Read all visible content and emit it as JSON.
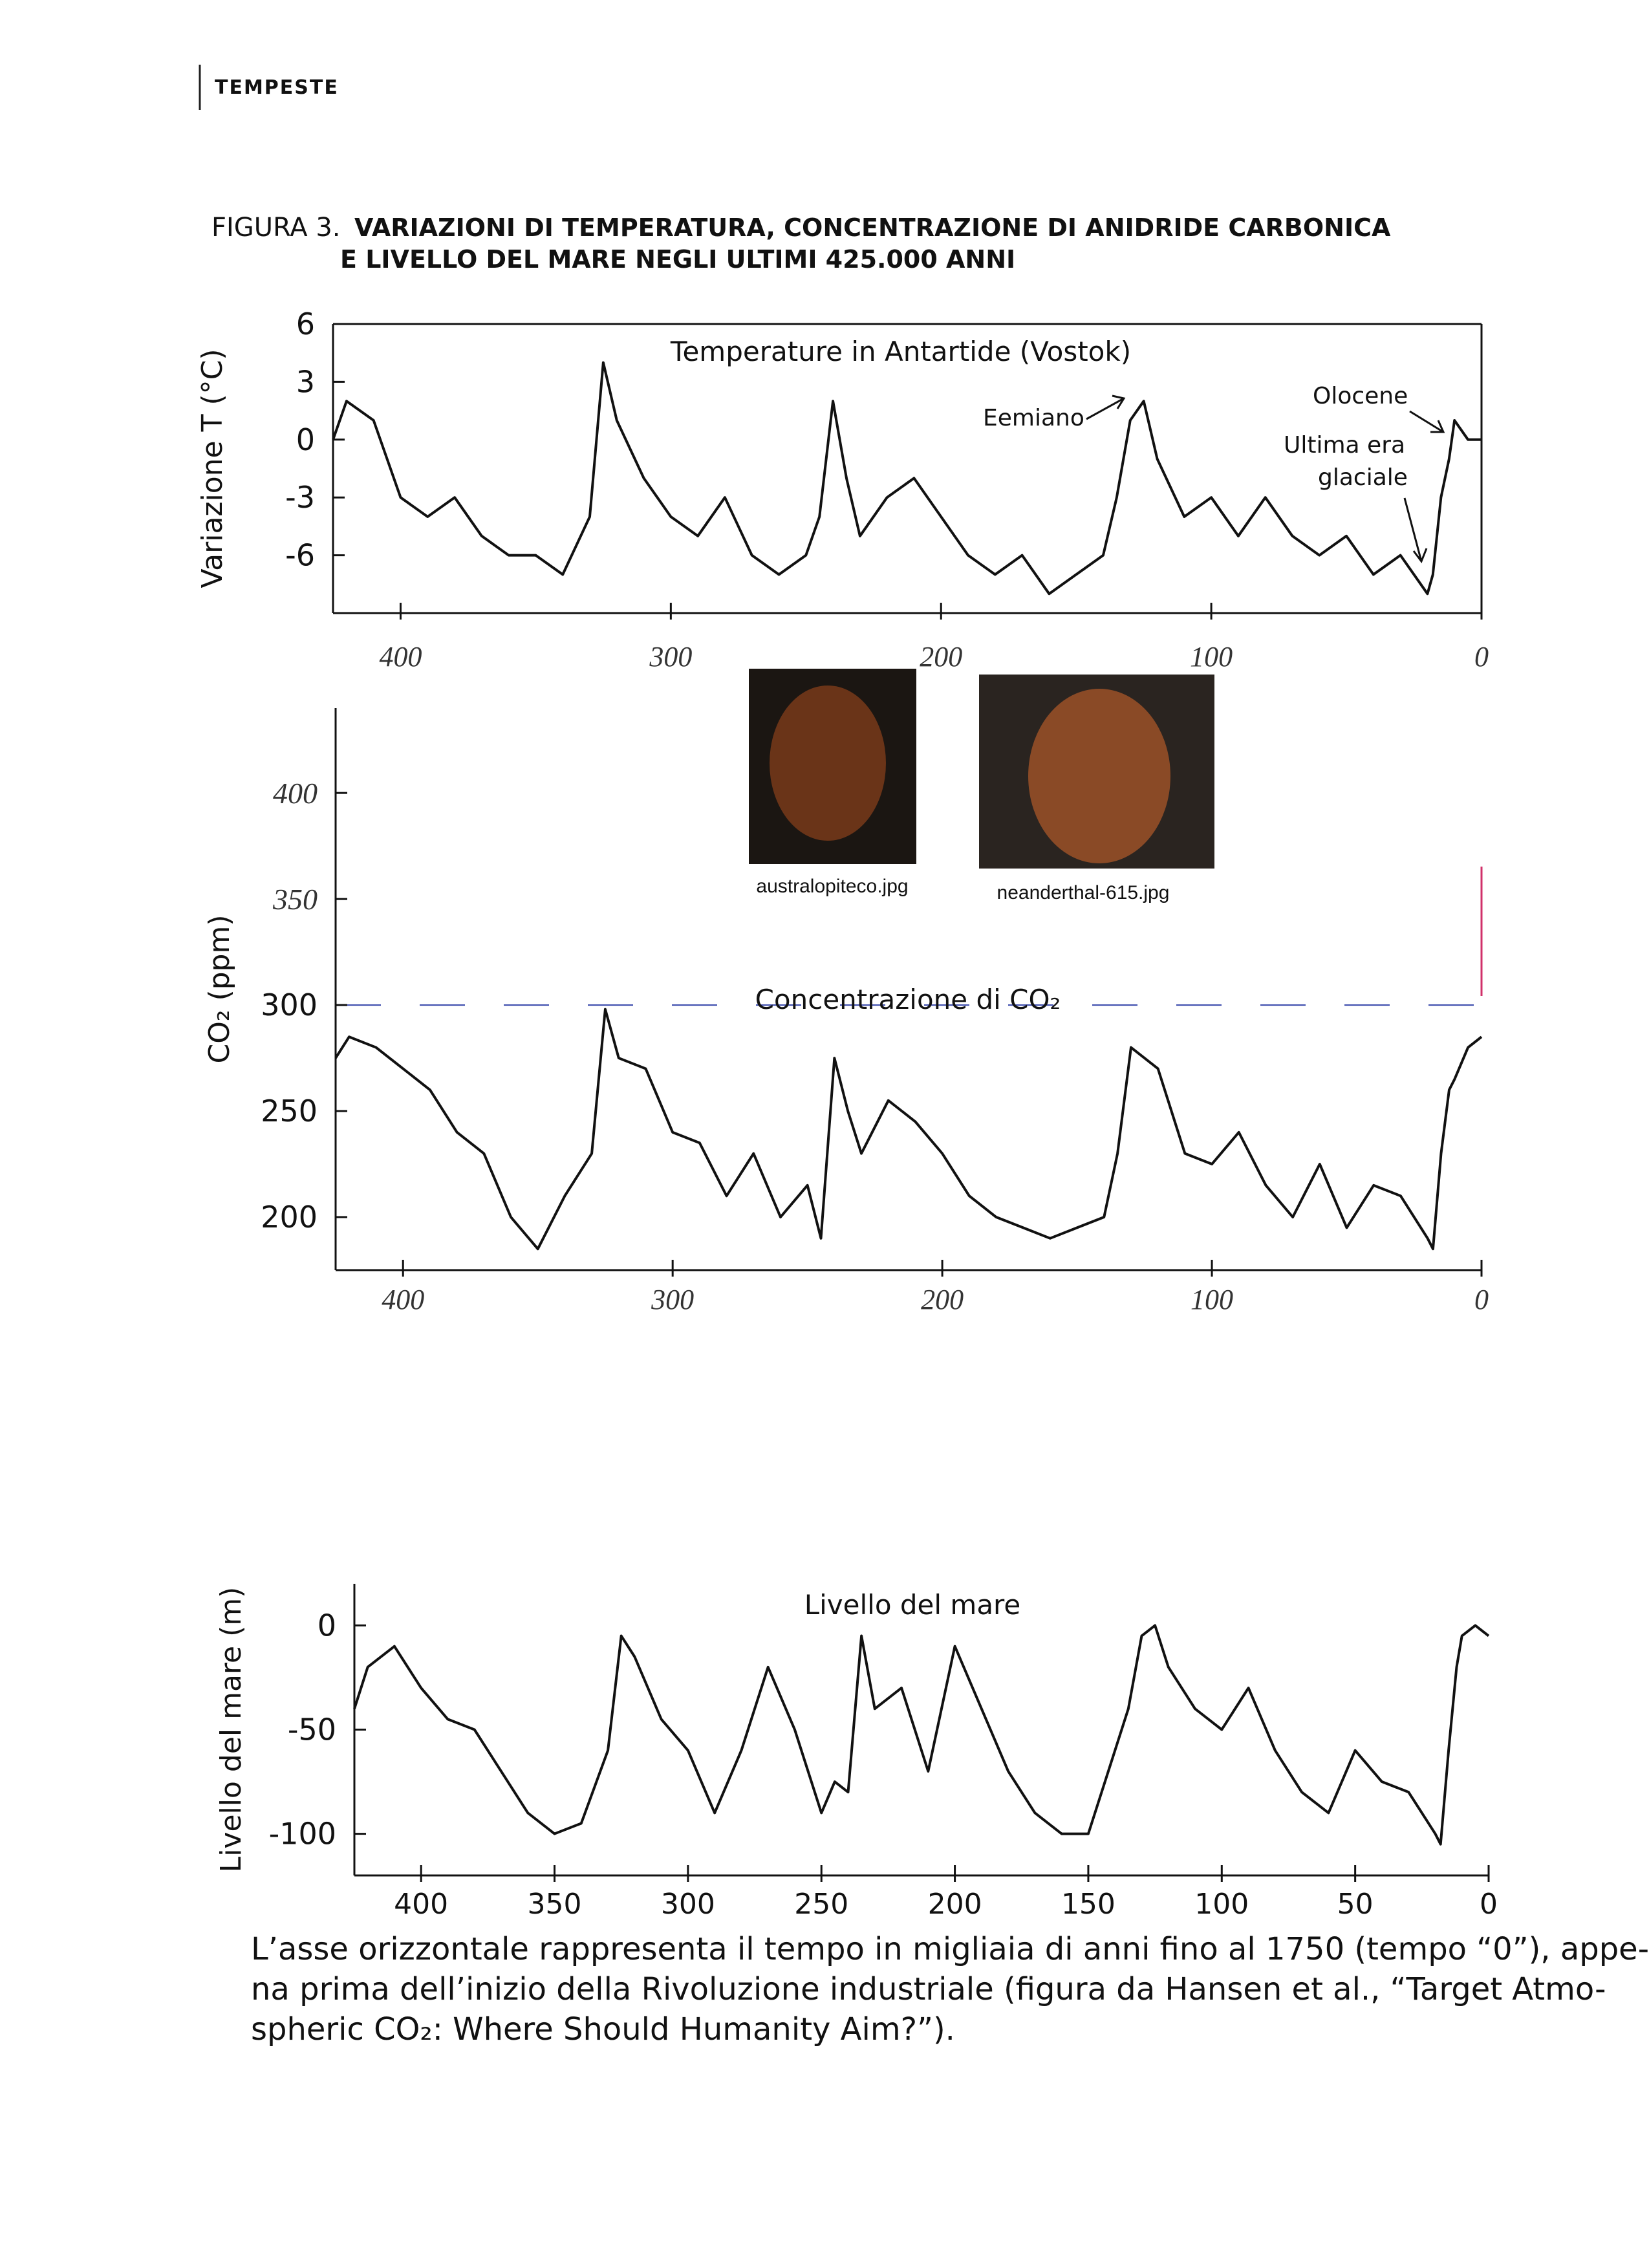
{
  "header": {
    "section": "TEMPESTE"
  },
  "figure": {
    "label": "FIGURA 3.",
    "title_lines": [
      "VARIAZIONI DI TEMPERATURA, CONCENTRAZIONE DI ANIDRIDE CARBONICA",
      "E LIVELLO DEL MARE NEGLI ULTIMI 425.000 ANNI"
    ]
  },
  "images": [
    {
      "caption": "australopiteco.jpg"
    },
    {
      "caption": "neanderthal-615.jpg"
    }
  ],
  "chart_data": [
    {
      "type": "line",
      "title": "Temperature in Antartide (Vostok)",
      "y_label": "Variazione T (°C)",
      "annotations": [
        "Eemiano",
        "Olocene",
        "Ultima era",
        "glaciale"
      ],
      "color": "#111",
      "x": [
        425,
        420,
        410,
        400,
        390,
        380,
        370,
        360,
        350,
        340,
        330,
        325,
        320,
        310,
        300,
        290,
        280,
        270,
        260,
        250,
        245,
        240,
        235,
        230,
        220,
        210,
        200,
        190,
        180,
        170,
        160,
        150,
        140,
        135,
        130,
        125,
        120,
        110,
        100,
        90,
        80,
        70,
        60,
        50,
        40,
        30,
        20,
        18,
        15,
        12,
        10,
        5,
        0
      ],
      "values": [
        0,
        2,
        1,
        -3,
        -4,
        -3,
        -5,
        -6,
        -6,
        -7,
        -4,
        4,
        1,
        -2,
        -4,
        -5,
        -3,
        -6,
        -7,
        -6,
        -4,
        2,
        -2,
        -5,
        -3,
        -2,
        -4,
        -6,
        -7,
        -6,
        -8,
        -7,
        -6,
        -3,
        1,
        2,
        -1,
        -4,
        -3,
        -5,
        -3,
        -5,
        -6,
        -5,
        -7,
        -6,
        -8,
        -7,
        -3,
        -1,
        1,
        0,
        0
      ],
      "xlim": [
        425,
        0
      ],
      "xticks": [
        400,
        300,
        200,
        100,
        0
      ],
      "ylim": [
        -9,
        6
      ],
      "yticks": [
        6,
        3,
        0,
        -3,
        -6
      ]
    },
    {
      "type": "line",
      "title": "Concentrazione di CO₂",
      "y_label": "CO₂ (ppm)",
      "color": "#111",
      "x": [
        425,
        420,
        410,
        400,
        390,
        380,
        370,
        360,
        350,
        340,
        330,
        325,
        320,
        310,
        300,
        290,
        280,
        270,
        260,
        250,
        245,
        240,
        235,
        230,
        220,
        210,
        200,
        190,
        180,
        170,
        160,
        150,
        140,
        135,
        130,
        125,
        120,
        110,
        100,
        90,
        80,
        70,
        60,
        50,
        40,
        30,
        20,
        18,
        15,
        12,
        10,
        5,
        0
      ],
      "values": [
        275,
        285,
        280,
        270,
        260,
        240,
        230,
        200,
        185,
        210,
        230,
        298,
        275,
        270,
        240,
        235,
        210,
        230,
        200,
        215,
        190,
        275,
        250,
        230,
        255,
        245,
        230,
        210,
        200,
        195,
        190,
        195,
        200,
        230,
        280,
        275,
        270,
        230,
        225,
        240,
        215,
        200,
        225,
        195,
        215,
        210,
        190,
        185,
        230,
        260,
        265,
        280,
        285
      ],
      "xlim": [
        425,
        0
      ],
      "xticks": [
        400,
        300,
        200,
        100,
        0
      ],
      "ylim": [
        175,
        440
      ],
      "yticks": [
        400,
        350,
        300,
        250,
        200
      ],
      "ytick_colors": [
        "#555",
        "#d0306a",
        "#111",
        "#111",
        "#111"
      ]
    },
    {
      "type": "line",
      "title": "Livello del mare",
      "y_label": "Livello del mare (m)",
      "color": "#111",
      "x": [
        425,
        420,
        410,
        400,
        390,
        380,
        370,
        360,
        350,
        340,
        330,
        325,
        320,
        310,
        300,
        290,
        280,
        270,
        260,
        250,
        245,
        240,
        235,
        230,
        220,
        210,
        200,
        190,
        180,
        170,
        160,
        150,
        140,
        135,
        130,
        125,
        120,
        110,
        100,
        90,
        80,
        70,
        60,
        50,
        40,
        30,
        20,
        18,
        15,
        12,
        10,
        5,
        0
      ],
      "values": [
        -40,
        -20,
        -10,
        -30,
        -45,
        -50,
        -70,
        -90,
        -100,
        -95,
        -60,
        -5,
        -15,
        -45,
        -60,
        -90,
        -60,
        -20,
        -50,
        -90,
        -75,
        -80,
        -5,
        -40,
        -30,
        -70,
        -10,
        -40,
        -70,
        -90,
        -100,
        -100,
        -60,
        -40,
        -5,
        0,
        -20,
        -40,
        -50,
        -30,
        -60,
        -80,
        -90,
        -60,
        -75,
        -80,
        -100,
        -105,
        -60,
        -20,
        -5,
        0,
        -5
      ],
      "xlim": [
        425,
        0
      ],
      "xticks": [
        400,
        350,
        300,
        250,
        200,
        150,
        100,
        50,
        0
      ],
      "ylim": [
        -120,
        20
      ],
      "yticks": [
        0,
        -50,
        -100
      ]
    }
  ],
  "caption": {
    "lines": [
      "L’asse orizzontale rappresenta il tempo in migliaia di anni fino al 1750 (tempo “0”), appe-",
      "na prima dell’inizio della Rivoluzione industriale (figura da Hansen et al., “Target Atmo-",
      "spheric CO₂: Where Should Humanity Aim?”)."
    ]
  }
}
